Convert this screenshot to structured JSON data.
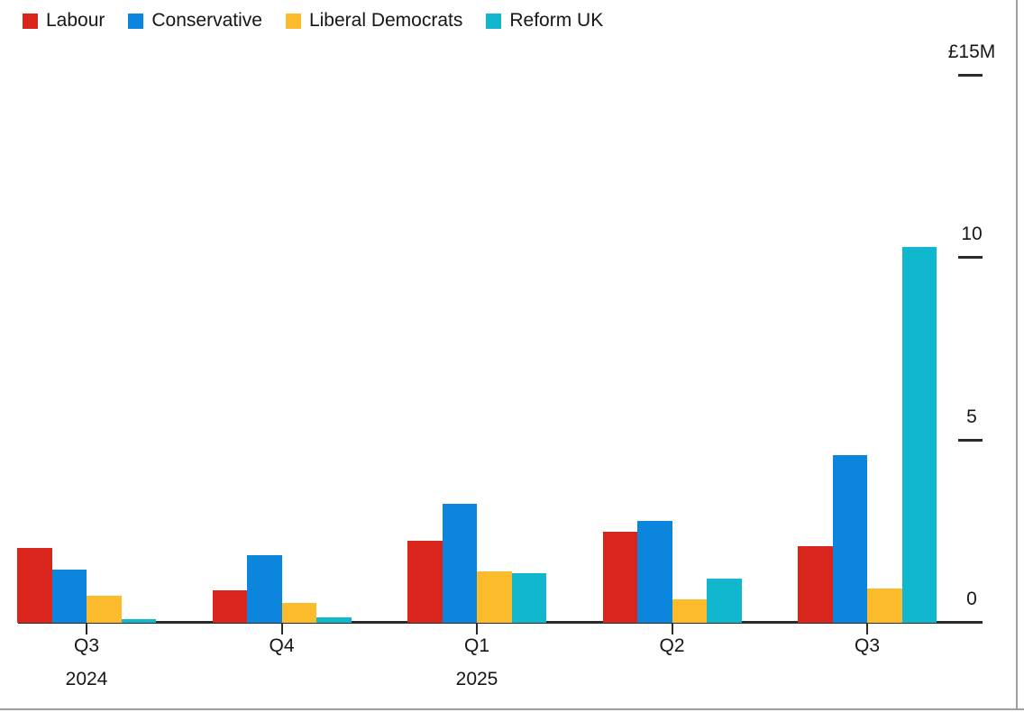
{
  "chart_data": {
    "type": "bar",
    "title": "",
    "unit": "£M",
    "categories": [
      {
        "quarter": "Q3",
        "year": "2024"
      },
      {
        "quarter": "Q4",
        "year": ""
      },
      {
        "quarter": "Q1",
        "year": "2025"
      },
      {
        "quarter": "Q2",
        "year": ""
      },
      {
        "quarter": "Q3",
        "year": ""
      }
    ],
    "series": [
      {
        "name": "Labour",
        "color": "#d9251c",
        "values": [
          2.05,
          0.9,
          2.25,
          2.5,
          2.1
        ]
      },
      {
        "name": "Conservative",
        "color": "#0b86dc",
        "values": [
          1.45,
          1.85,
          3.25,
          2.8,
          4.6
        ]
      },
      {
        "name": "Liberal Democrats",
        "color": "#fcbb2b",
        "values": [
          0.75,
          0.55,
          1.4,
          0.65,
          0.95
        ]
      },
      {
        "name": "Reform UK",
        "color": "#10b7ce",
        "values": [
          0.1,
          0.15,
          1.35,
          1.2,
          10.3
        ]
      }
    ],
    "y_axis": {
      "side": "right",
      "ylim": [
        0,
        15
      ],
      "grid": false,
      "ticks": [
        {
          "value": 15,
          "label": "£15M"
        },
        {
          "value": 10,
          "label": "10"
        },
        {
          "value": 5,
          "label": "5"
        },
        {
          "value": 0,
          "label": "0"
        }
      ]
    },
    "legend_position": "top-left"
  }
}
